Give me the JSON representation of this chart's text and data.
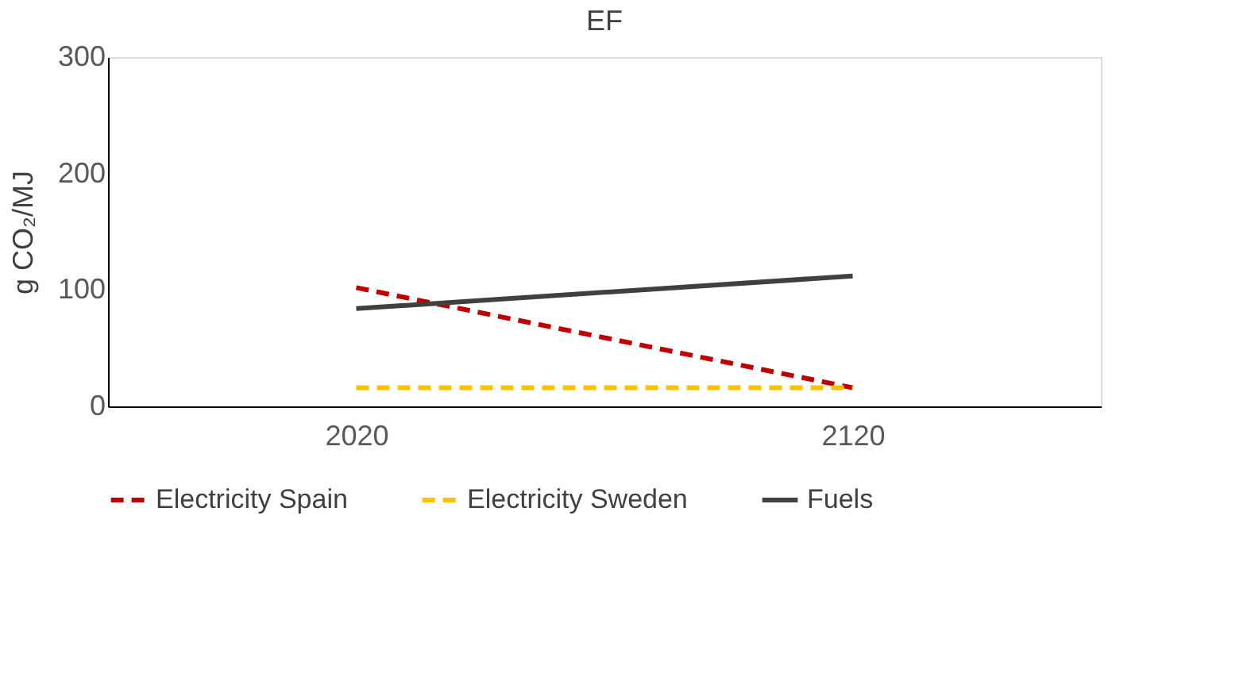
{
  "chart_data": {
    "type": "line",
    "title": "EF",
    "ylabel": "g CO₂/MJ",
    "categories": [
      "2020",
      "2120"
    ],
    "series": [
      {
        "name": "Electricity Spain",
        "color": "#c00000",
        "line_style": "dashed",
        "values": [
          102,
          16
        ]
      },
      {
        "name": "Electricity Sweden",
        "color": "#ffc000",
        "line_style": "dashed",
        "values": [
          16,
          16
        ]
      },
      {
        "name": "Fuels",
        "color": "#404040",
        "line_style": "solid",
        "values": [
          84,
          112
        ]
      }
    ],
    "ylim": [
      0,
      300
    ],
    "yticks": [
      0,
      100,
      200,
      300
    ],
    "grid": false,
    "legend": "bottom",
    "marker": "none"
  }
}
